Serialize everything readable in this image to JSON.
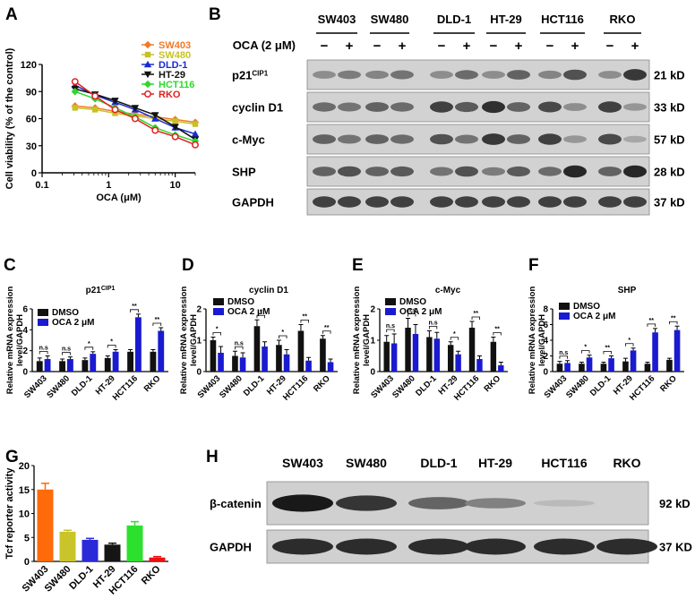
{
  "figure": {
    "panel_letters": [
      "A",
      "B",
      "C",
      "D",
      "E",
      "F",
      "G",
      "H"
    ],
    "blot_B": {
      "treatment_label": "OCA (2 μM)",
      "cell_lines": [
        "SW403",
        "SW480",
        "DLD-1",
        "HT-29",
        "HCT116",
        "RKO"
      ],
      "lane_signs": [
        "−",
        "+",
        "−",
        "+",
        "−",
        "+",
        "−",
        "+",
        "−",
        "+",
        "−",
        "+"
      ],
      "proteins": [
        {
          "name": "p21",
          "superscript": "CIP1",
          "size": "21 kD"
        },
        {
          "name": "cyclin D1",
          "superscript": "",
          "size": "33 kD"
        },
        {
          "name": "c-Myc",
          "superscript": "",
          "size": "57 kD"
        },
        {
          "name": "SHP",
          "superscript": "",
          "size": "28 kD"
        },
        {
          "name": "GAPDH",
          "superscript": "",
          "size": "37 kD"
        }
      ],
      "band_intensity": [
        [
          0.35,
          0.45,
          0.4,
          0.5,
          0.35,
          0.55,
          0.35,
          0.6,
          0.4,
          0.7,
          0.35,
          0.85
        ],
        [
          0.55,
          0.5,
          0.6,
          0.55,
          0.8,
          0.65,
          0.9,
          0.6,
          0.75,
          0.35,
          0.8,
          0.3
        ],
        [
          0.6,
          0.5,
          0.6,
          0.55,
          0.7,
          0.5,
          0.85,
          0.6,
          0.8,
          0.3,
          0.75,
          0.2
        ],
        [
          0.6,
          0.7,
          0.6,
          0.65,
          0.5,
          0.7,
          0.45,
          0.65,
          0.55,
          0.95,
          0.6,
          0.95
        ],
        [
          0.8,
          0.8,
          0.8,
          0.8,
          0.8,
          0.8,
          0.8,
          0.8,
          0.8,
          0.8,
          0.8,
          0.8
        ]
      ]
    },
    "blot_H": {
      "cell_lines": [
        "SW403",
        "SW480",
        "DLD-1",
        "HT-29",
        "HCT116",
        "RKO"
      ],
      "proteins": [
        {
          "name": "β-catenin",
          "size": "92 kD"
        },
        {
          "name": "GAPDH",
          "size": "37 KD"
        }
      ],
      "band_intensity": [
        [
          0.95,
          0.8,
          0.55,
          0.4,
          0.1,
          0.0
        ],
        [
          0.85,
          0.85,
          0.85,
          0.85,
          0.85,
          0.85
        ]
      ]
    }
  },
  "chart_data": [
    {
      "panel": "A",
      "type": "line",
      "xscale": "log",
      "xlabel": "OCA (μM)",
      "ylabel": "Cell viability (% of the control)",
      "xlim": [
        0.1,
        20
      ],
      "ylim": [
        0,
        120
      ],
      "xticks": [
        0.1,
        1,
        10
      ],
      "xtick_labels": [
        "0.1",
        "1",
        "10"
      ],
      "yticks": [
        0,
        30,
        60,
        90,
        120
      ],
      "legend_position": "top-right",
      "x": [
        0.3125,
        0.625,
        1.25,
        2.5,
        5,
        10,
        20
      ],
      "series": [
        {
          "name": "SW403",
          "color": "#f07a2a",
          "marker": "diamond",
          "values": [
            74,
            72,
            68,
            65,
            62,
            59,
            56
          ]
        },
        {
          "name": "SW480",
          "color": "#c6c224",
          "marker": "square",
          "values": [
            72,
            70,
            66,
            63,
            60,
            57,
            54
          ]
        },
        {
          "name": "DLD-1",
          "color": "#1a2bd0",
          "marker": "triangle",
          "values": [
            97,
            86,
            78,
            70,
            60,
            50,
            43
          ]
        },
        {
          "name": "HT-29",
          "color": "#111111",
          "marker": "triangle-down",
          "values": [
            93,
            87,
            80,
            72,
            64,
            51,
            37
          ]
        },
        {
          "name": "HCT116",
          "color": "#2ed82e",
          "marker": "diamond",
          "values": [
            90,
            82,
            72,
            62,
            50,
            42,
            35
          ]
        },
        {
          "name": "RKO",
          "color": "#e02020",
          "marker": "circle-open",
          "values": [
            101,
            85,
            70,
            60,
            47,
            40,
            31
          ]
        }
      ]
    },
    {
      "panel": "C",
      "type": "bar",
      "title": "p21",
      "title_superscript": "CIP1",
      "ylabel": "Relative mRNA expression level/GAPDH",
      "ylim": [
        0,
        6
      ],
      "yticks": [
        0,
        2,
        4,
        6
      ],
      "categories": [
        "SW403",
        "SW480",
        "DLD-1",
        "HT-29",
        "HCT116",
        "RKO"
      ],
      "series": [
        {
          "name": "DMSO",
          "color": "#111111",
          "values": [
            1.0,
            1.0,
            1.1,
            1.3,
            1.9,
            1.9
          ],
          "errors": [
            0.3,
            0.2,
            0.2,
            0.2,
            0.2,
            0.2
          ]
        },
        {
          "name": "OCA 2 μM",
          "color": "#1a1ad0",
          "values": [
            1.2,
            1.2,
            1.7,
            1.9,
            5.2,
            3.9
          ],
          "errors": [
            0.3,
            0.2,
            0.2,
            0.2,
            0.3,
            0.3
          ]
        }
      ],
      "significance": [
        "n.s",
        "n.s",
        "*",
        "*",
        "**",
        "**"
      ]
    },
    {
      "panel": "D",
      "type": "bar",
      "title": "cyclin D1",
      "title_superscript": "",
      "ylabel": "Relative mRNA expression level/GAPDH",
      "ylim": [
        0,
        2
      ],
      "yticks": [
        0,
        1,
        2
      ],
      "categories": [
        "SW403",
        "SW480",
        "DLD-1",
        "HT-29",
        "HCT116",
        "RKO"
      ],
      "series": [
        {
          "name": "DMSO",
          "color": "#111111",
          "values": [
            1.0,
            0.5,
            1.45,
            0.85,
            1.3,
            1.05
          ],
          "errors": [
            0.1,
            0.15,
            0.2,
            0.15,
            0.2,
            0.1
          ]
        },
        {
          "name": "OCA 2 μM",
          "color": "#1a1ad0",
          "values": [
            0.6,
            0.45,
            0.8,
            0.55,
            0.35,
            0.3
          ],
          "errors": [
            0.2,
            0.15,
            0.15,
            0.15,
            0.1,
            0.1
          ]
        }
      ],
      "significance": [
        "*",
        "n.s",
        "*",
        "*",
        "**",
        "**"
      ]
    },
    {
      "panel": "E",
      "type": "bar",
      "title": "c-Myc",
      "title_superscript": "",
      "ylabel": "Relative mRNA expression level/GAPDH",
      "ylim": [
        0,
        2
      ],
      "yticks": [
        0,
        1,
        2
      ],
      "categories": [
        "SW403",
        "SW480",
        "DLD-1",
        "HT-29",
        "HCT116",
        "RKO"
      ],
      "series": [
        {
          "name": "DMSO",
          "color": "#111111",
          "values": [
            0.95,
            1.4,
            1.1,
            0.85,
            1.4,
            0.95
          ],
          "errors": [
            0.2,
            0.3,
            0.2,
            0.1,
            0.2,
            0.15
          ]
        },
        {
          "name": "OCA 2 μM",
          "color": "#1a1ad0",
          "values": [
            0.9,
            1.2,
            1.05,
            0.55,
            0.4,
            0.2
          ],
          "errors": [
            0.3,
            0.3,
            0.2,
            0.1,
            0.1,
            0.1
          ]
        }
      ],
      "significance": [
        "n.s",
        "n.s",
        "n.s",
        "*",
        "**",
        "**"
      ]
    },
    {
      "panel": "F",
      "type": "bar",
      "title": "SHP",
      "title_superscript": "",
      "ylabel": "Relative mRNA expression level/GAPDH",
      "ylim": [
        0,
        8
      ],
      "yticks": [
        0,
        2,
        4,
        6,
        8
      ],
      "categories": [
        "SW403",
        "SW480",
        "DLD-1",
        "HT-29",
        "HCT116",
        "RKO"
      ],
      "series": [
        {
          "name": "DMSO",
          "color": "#111111",
          "values": [
            1.0,
            1.0,
            1.0,
            1.3,
            1.0,
            1.5
          ],
          "errors": [
            0.3,
            0.2,
            0.2,
            0.4,
            0.2,
            0.2
          ]
        },
        {
          "name": "OCA 2 μM",
          "color": "#1a1ad0",
          "values": [
            1.1,
            1.8,
            1.7,
            2.7,
            5.0,
            5.3
          ],
          "errors": [
            0.3,
            0.3,
            0.3,
            0.3,
            0.5,
            0.5
          ]
        }
      ],
      "significance": [
        "n.s",
        "*",
        "**",
        "*",
        "**",
        "**"
      ]
    },
    {
      "panel": "G",
      "type": "bar",
      "title": "",
      "ylabel": "Tcf reporter activity",
      "ylim": [
        0,
        20
      ],
      "yticks": [
        0,
        5,
        10,
        15,
        20
      ],
      "categories": [
        "SW403",
        "SW480",
        "DLD-1",
        "HT-29",
        "HCT116",
        "RKO"
      ],
      "values": [
        15.0,
        6.2,
        4.5,
        3.5,
        7.5,
        0.8
      ],
      "errors": [
        1.3,
        0.3,
        0.3,
        0.3,
        0.8,
        0.2
      ],
      "colors": [
        "#ff6a0a",
        "#c9c42a",
        "#2a2ad8",
        "#151515",
        "#2ee02e",
        "#ee1010"
      ]
    }
  ]
}
